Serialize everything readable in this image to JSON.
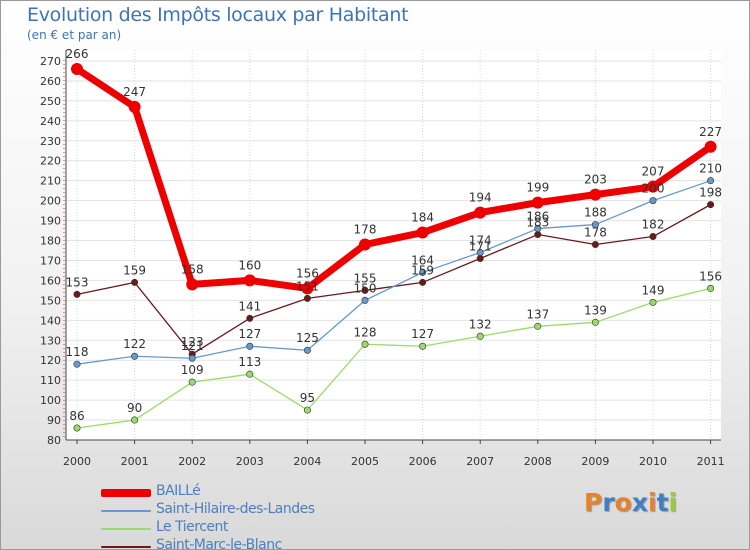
{
  "header": {
    "title": "Evolution des Impôts locaux par Habitant",
    "subtitle": "(en € et par an)"
  },
  "chart_data": {
    "type": "line",
    "title": "Evolution des Impôts locaux par Habitant",
    "ylabel": "(en € et par an)",
    "xlabel": "",
    "categories": [
      "2000",
      "2001",
      "2002",
      "2003",
      "2004",
      "2005",
      "2006",
      "2007",
      "2008",
      "2009",
      "2010",
      "2011"
    ],
    "ylim": [
      80,
      270
    ],
    "yticks": [
      "80",
      "90",
      "100",
      "110",
      "120",
      "130",
      "140",
      "150",
      "160",
      "170",
      "180",
      "190",
      "200",
      "210",
      "220",
      "230",
      "240",
      "250",
      "260",
      "270"
    ],
    "grid": true,
    "legend_position": "bottom-left",
    "series": [
      {
        "name": "Saint-Marc-le-Blanc",
        "color": "#6b1a1a",
        "values": [
          153,
          159,
          123,
          141,
          151,
          155,
          159,
          171,
          183,
          178,
          182,
          198
        ],
        "labels": [
          "153",
          "159",
          "123",
          "141",
          "151",
          "155",
          "159",
          "171",
          "183",
          "178",
          "182",
          "198"
        ]
      },
      {
        "name": "Le Tiercent",
        "color": "#99dd66",
        "values": [
          86,
          90,
          109,
          113,
          95,
          128,
          127,
          132,
          137,
          139,
          149,
          156
        ],
        "labels": [
          "86",
          "90",
          "109",
          "113",
          "95",
          "128",
          "127",
          "132",
          "137",
          "139",
          "149",
          "156"
        ]
      },
      {
        "name": "Saint-Hilaire-des-Landes",
        "color": "#6699cc",
        "values": [
          118,
          122,
          121,
          127,
          125,
          150,
          164,
          174,
          186,
          188,
          200,
          210
        ],
        "labels": [
          "118",
          "122",
          "121",
          "127",
          "125",
          "150",
          "164",
          "174",
          "186",
          "188",
          "200",
          "210"
        ]
      },
      {
        "name": "BAILLé",
        "color": "#ee0000",
        "values": [
          266,
          247,
          158,
          160,
          156,
          178,
          184,
          194,
          199,
          203,
          207,
          227
        ],
        "labels": [
          "266",
          "247",
          "158",
          "160",
          "156",
          "178",
          "184",
          "194",
          "199",
          "203",
          "207",
          "227"
        ]
      }
    ]
  },
  "legend": {
    "items": [
      {
        "label": "BAILLé",
        "color": "#ee0000"
      },
      {
        "label": "Saint-Hilaire-des-Landes",
        "color": "#6699cc"
      },
      {
        "label": "Le Tiercent",
        "color": "#99dd66"
      },
      {
        "label": "Saint-Marc-le-Blanc",
        "color": "#6b1a1a"
      }
    ]
  },
  "logo": {
    "text": "Proxiti",
    "letters": [
      {
        "ch": "P",
        "color": "#e8822a"
      },
      {
        "ch": "r",
        "color": "#3f7fc4"
      },
      {
        "ch": "o",
        "color": "#e8822a"
      },
      {
        "ch": "x",
        "color": "#3f7fc4"
      },
      {
        "ch": "i",
        "color": "#e8822a"
      },
      {
        "ch": "t",
        "color": "#3f7fc4"
      },
      {
        "ch": "i",
        "color": "#9acd32"
      }
    ]
  }
}
